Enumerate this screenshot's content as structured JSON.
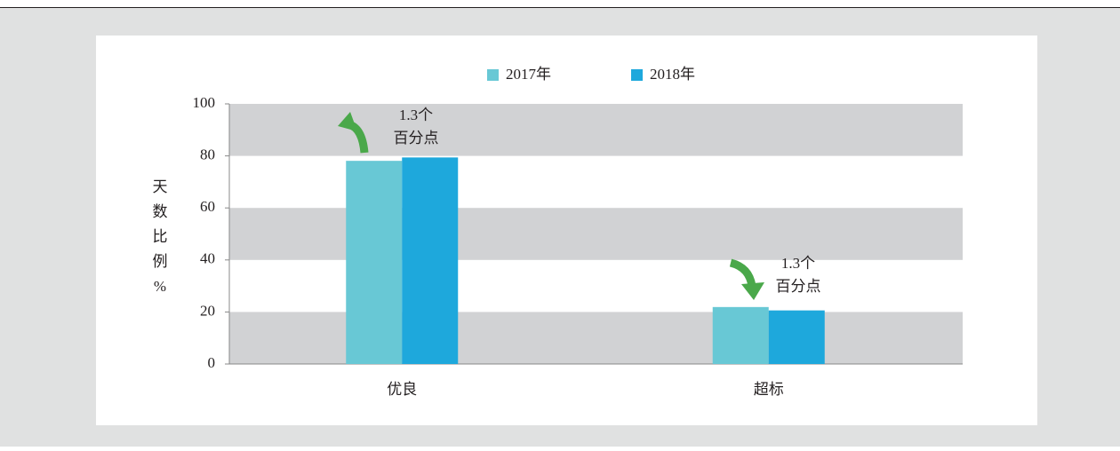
{
  "chart_data": {
    "type": "bar",
    "y_label": "天数比例%",
    "categories": [
      "优良",
      "超标"
    ],
    "series": [
      {
        "name": "2017年",
        "color": "#68c8d5",
        "values": [
          78.1,
          21.9
        ]
      },
      {
        "name": "2018年",
        "color": "#1ea8dc",
        "values": [
          79.4,
          20.6
        ]
      }
    ],
    "ylim": [
      0,
      100
    ],
    "yticks": [
      0,
      20,
      40,
      60,
      80,
      100
    ],
    "band_color": "#d1d2d4",
    "annotations": [
      {
        "lines": [
          "1.3个",
          "百分点"
        ]
      },
      {
        "lines": [
          "1.3个",
          "百分点"
        ]
      }
    ]
  }
}
